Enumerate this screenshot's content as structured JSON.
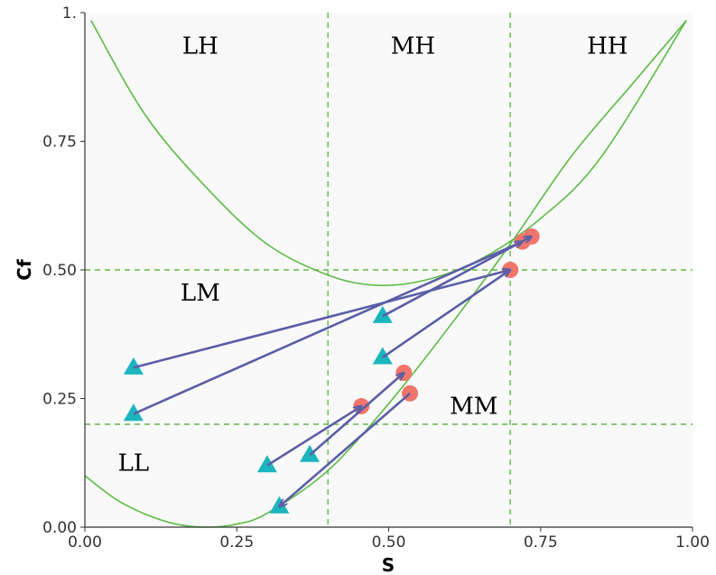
{
  "chart_data": {
    "type": "scatter",
    "xlabel": "S",
    "ylabel": "Cf",
    "xlim": [
      0,
      1
    ],
    "ylim": [
      0,
      1
    ],
    "x_ticks": [
      "0.00",
      "0.25",
      "0.50",
      "0.75",
      "1.00"
    ],
    "y_ticks": [
      "0.00",
      "0.25",
      "0.50",
      "0.75",
      "1."
    ],
    "x_tick_values": [
      0,
      0.25,
      0.5,
      0.75,
      1
    ],
    "y_tick_values": [
      0,
      0.25,
      0.5,
      0.75,
      1
    ],
    "grid": false,
    "dashed_vertical_lines": [
      0.4,
      0.7
    ],
    "dashed_horizontal_lines": [
      0.2,
      0.5
    ],
    "region_labels": [
      {
        "text": "LH",
        "x": 0.19,
        "y": 0.92
      },
      {
        "text": "MH",
        "x": 0.54,
        "y": 0.92
      },
      {
        "text": "HH",
        "x": 0.86,
        "y": 0.92
      },
      {
        "text": "LM",
        "x": 0.19,
        "y": 0.44
      },
      {
        "text": "MM",
        "x": 0.64,
        "y": 0.22
      },
      {
        "text": "LL",
        "x": 0.08,
        "y": 0.11
      }
    ],
    "curves": [
      {
        "color": "#5DBB46",
        "points": [
          [
            0.01,
            0.985
          ],
          [
            0.1,
            0.8
          ],
          [
            0.2,
            0.66
          ],
          [
            0.3,
            0.55
          ],
          [
            0.4,
            0.49
          ],
          [
            0.48,
            0.47
          ],
          [
            0.56,
            0.48
          ],
          [
            0.65,
            0.52
          ],
          [
            0.75,
            0.6
          ],
          [
            0.85,
            0.72
          ],
          [
            0.99,
            0.985
          ]
        ]
      },
      {
        "color": "#5DBB46",
        "points": [
          [
            0.0,
            0.1
          ],
          [
            0.05,
            0.055
          ],
          [
            0.1,
            0.025
          ],
          [
            0.15,
            0.006
          ],
          [
            0.2,
            0.0
          ],
          [
            0.25,
            0.006
          ],
          [
            0.3,
            0.027
          ],
          [
            0.4,
            0.11
          ],
          [
            0.5,
            0.24
          ],
          [
            0.6,
            0.39
          ],
          [
            0.7,
            0.55
          ],
          [
            0.8,
            0.72
          ],
          [
            0.9,
            0.86
          ],
          [
            0.99,
            0.985
          ]
        ]
      }
    ],
    "series": [
      {
        "marker": "triangle",
        "color": "#1BB5BE",
        "x": [
          0.08,
          0.08,
          0.49,
          0.49,
          0.3,
          0.37,
          0.32
        ],
        "y": [
          0.31,
          0.22,
          0.41,
          0.33,
          0.12,
          0.14,
          0.04
        ]
      },
      {
        "marker": "circle",
        "color": "#F0756B",
        "x": [
          0.735,
          0.72,
          0.7,
          0.525,
          0.455,
          0.535
        ],
        "y": [
          0.565,
          0.555,
          0.5,
          0.3,
          0.235,
          0.26
        ]
      }
    ],
    "arrows": [
      {
        "from": [
          0.08,
          0.31
        ],
        "to": [
          0.7,
          0.5
        ]
      },
      {
        "from": [
          0.08,
          0.22
        ],
        "to": [
          0.72,
          0.555
        ]
      },
      {
        "from": [
          0.49,
          0.41
        ],
        "to": [
          0.735,
          0.565
        ]
      },
      {
        "from": [
          0.49,
          0.33
        ],
        "to": [
          0.7,
          0.5
        ]
      },
      {
        "from": [
          0.3,
          0.12
        ],
        "to": [
          0.455,
          0.235
        ]
      },
      {
        "from": [
          0.37,
          0.14
        ],
        "to": [
          0.525,
          0.3
        ]
      },
      {
        "from": [
          0.535,
          0.26
        ],
        "to": [
          0.32,
          0.04
        ]
      }
    ],
    "colors": {
      "curve": "#5DBB46",
      "dashed_line": "#5DBB46",
      "arrow": "#5B5EA6",
      "triangle": "#1BB5BE",
      "circle": "#F0756B",
      "panel": "#F9F9F9"
    }
  }
}
